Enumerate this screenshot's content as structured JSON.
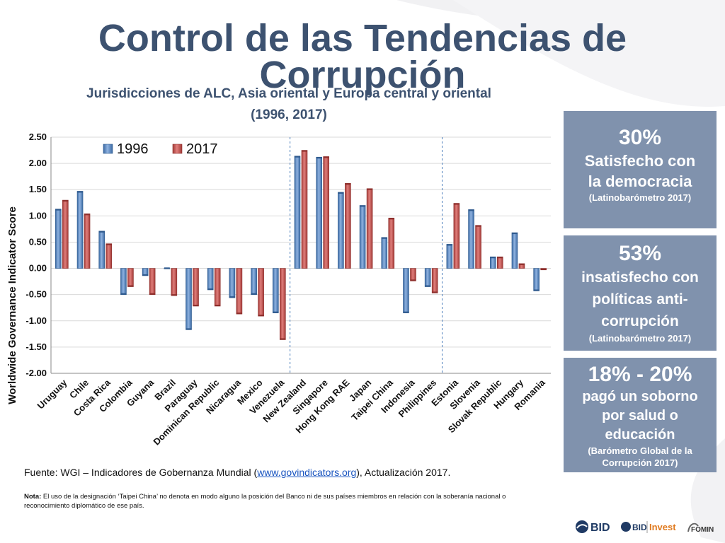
{
  "page_title": "Control de las Tendencias de Corrupción",
  "chart_data": {
    "type": "bar",
    "title_line1": "Jurisdicciones de ALC, Asia oriental y Europa central y oriental",
    "title_line2": "(1996, 2017)",
    "ylabel": "Worldwide Governance Indicator Score",
    "ylim": [
      -2.0,
      2.5
    ],
    "yticks": [
      "2.50",
      "2.00",
      "1.50",
      "1.00",
      "0.50",
      "0.00",
      "-0.50",
      "-1.00",
      "-1.50",
      "-2.00"
    ],
    "grid": true,
    "legend_position": "top-left",
    "categories": [
      "Uruguay",
      "Chile",
      "Costa Rica",
      "Colombia",
      "Guyana",
      "Brazil",
      "Paraguay",
      "Dominican Republic",
      "Nicaragua",
      "Mexico",
      "Venezuela",
      "New Zealand",
      "Singapore",
      "Hong Kong RAE",
      "Japan",
      "Taipei China",
      "Indonesia",
      "Philippines",
      "Estonia",
      "Slovenia",
      "Slovak Republic",
      "Hungary",
      "Romania"
    ],
    "series": [
      {
        "name": "1996",
        "color": "#4f81bd",
        "values": [
          1.13,
          1.47,
          0.71,
          -0.5,
          -0.14,
          -0.01,
          -1.17,
          -0.41,
          -0.56,
          -0.5,
          -0.85,
          2.14,
          2.12,
          1.45,
          1.2,
          0.59,
          -0.85,
          -0.35,
          0.46,
          1.12,
          0.22,
          0.68,
          -0.43
        ]
      },
      {
        "name": "2017",
        "color": "#c0504d",
        "values": [
          1.3,
          1.04,
          0.47,
          -0.35,
          -0.5,
          -0.52,
          -0.72,
          -0.72,
          -0.87,
          -0.91,
          -1.36,
          2.25,
          2.13,
          1.62,
          1.52,
          0.96,
          -0.24,
          -0.47,
          1.24,
          0.82,
          0.22,
          0.09,
          -0.03
        ]
      }
    ],
    "group_separators_after": [
      "Venezuela",
      "Philippines"
    ]
  },
  "stats": [
    {
      "big": "30%",
      "desc_lines": [
        "Satisfecho con",
        "la democracia"
      ],
      "source": "(Latinobarómetro 2017)"
    },
    {
      "big": "53%",
      "desc_lines": [
        "insatisfecho con",
        "políticas anti-",
        "corrupción"
      ],
      "source": "(Latinobarómetro 2017)"
    },
    {
      "big": "18% - 20%",
      "desc_lines": [
        "pagó un soborno",
        "por salud o",
        "educación"
      ],
      "source_lines": [
        "(Barómetro Global de la",
        "Corrupción 2017)"
      ]
    }
  ],
  "source_prefix": "Fuente: WGI – Indicadores de Gobernanza Mundial (",
  "source_link": "www.govindicators.org",
  "source_suffix": "), Actualización 2017.",
  "note_label": "Nota:",
  "note_text": " El uso de la designación ‘Taipei China’ no denota en modo alguno la posición del Banco ni de sus países miembros en relación con la soberanía nacional o reconocimiento diplomático de ese  país.",
  "logos": {
    "bid": "BID",
    "bid_invest_1": "BID",
    "bid_invest_2": "Invest",
    "fomin": "FOMIN"
  },
  "colors": {
    "title": "#3d5270",
    "stat_box": "#8092ad",
    "bar_1996": "#4f81bd",
    "bar_2017": "#c0504d"
  }
}
